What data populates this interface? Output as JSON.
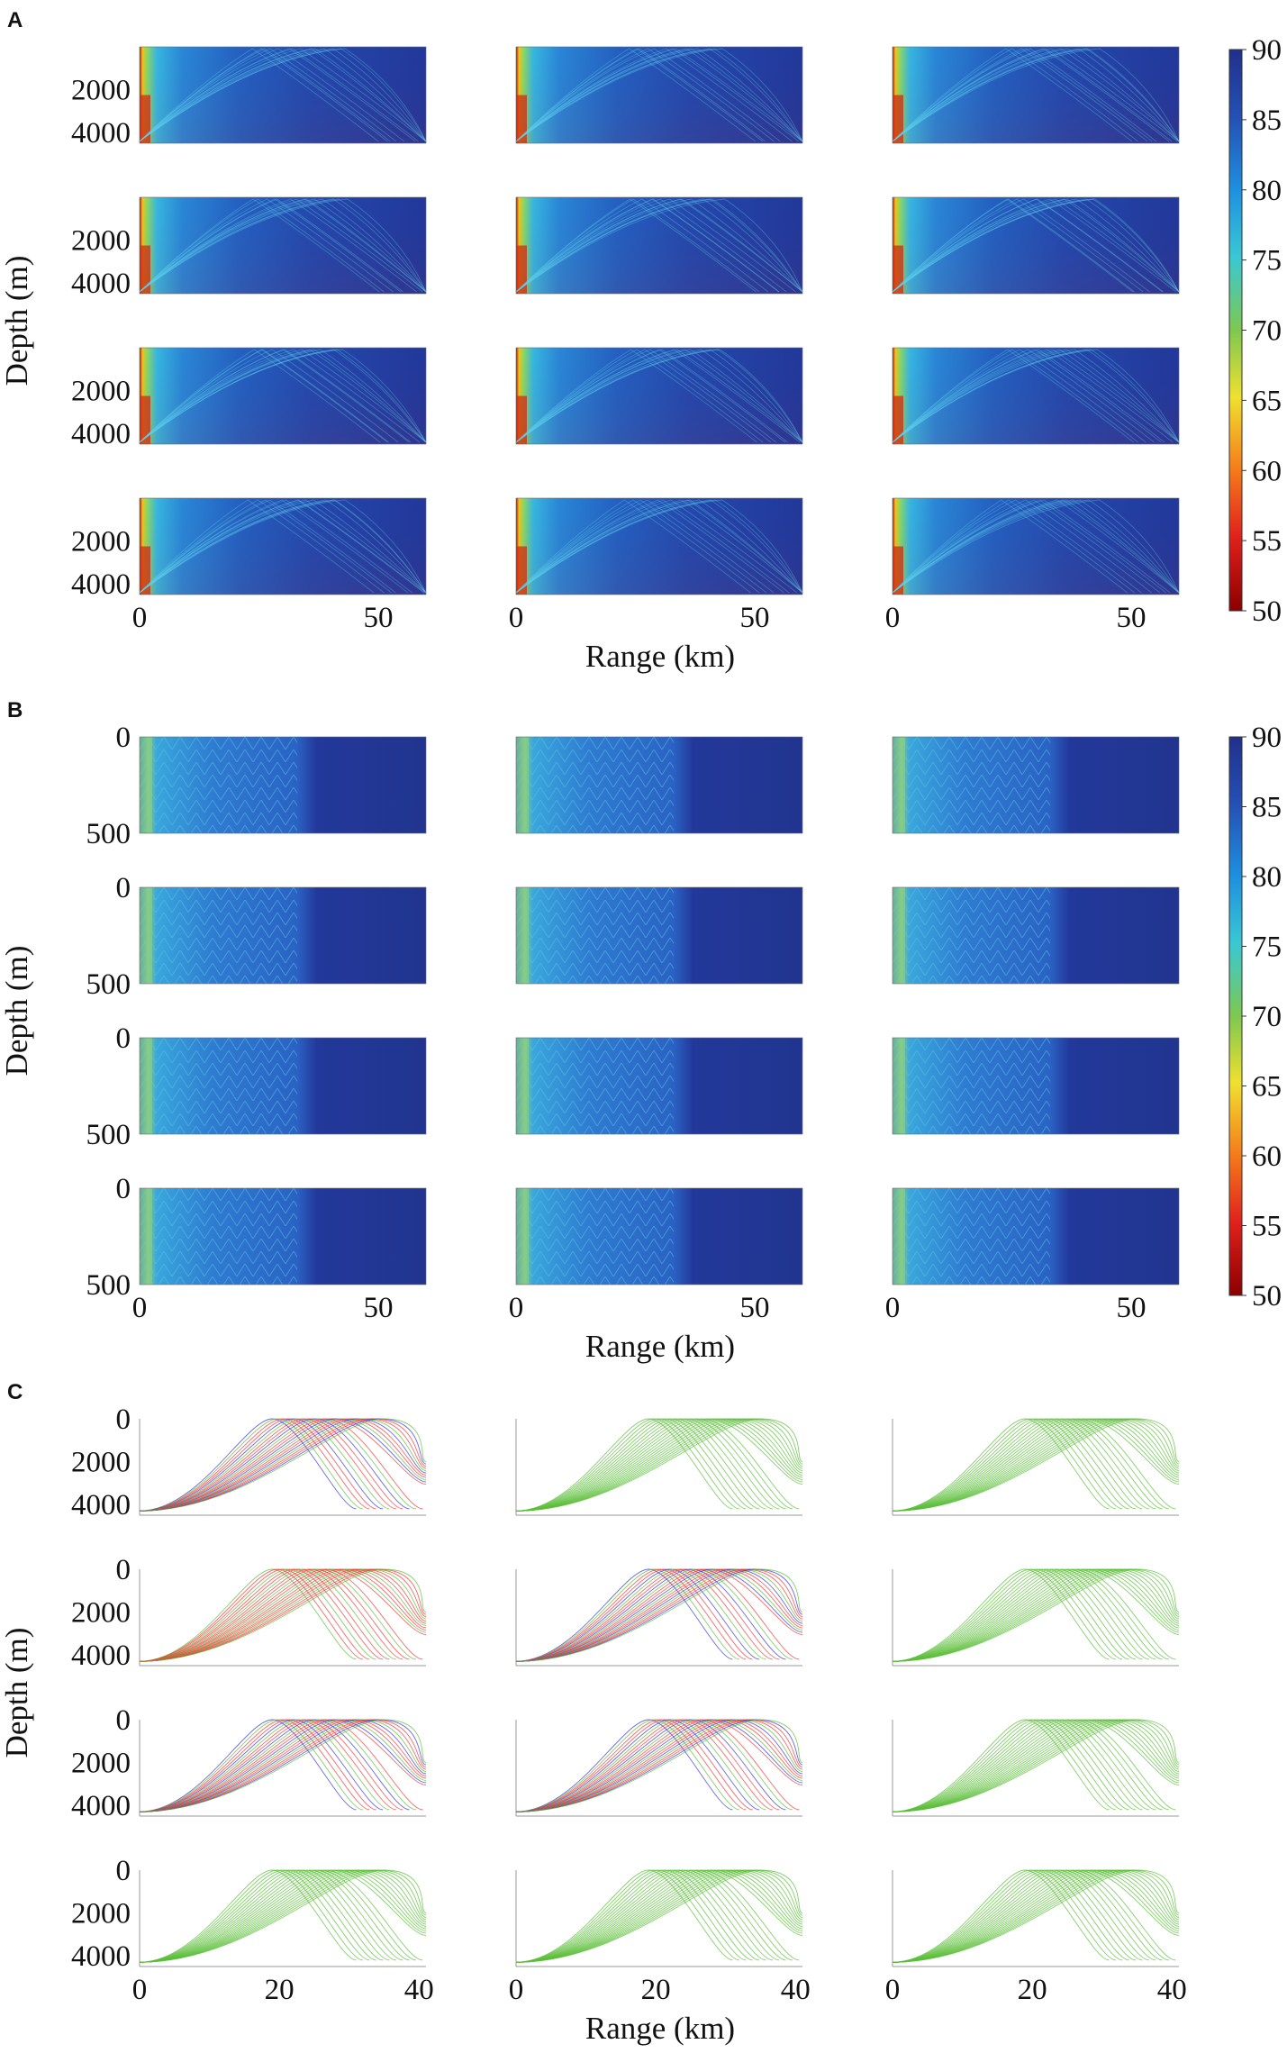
{
  "chart_data": [
    {
      "type": "heatmap",
      "panel_label": "A",
      "grid": {
        "rows": 4,
        "cols": 3
      },
      "ylabel": "Depth (m)",
      "xlabel": "Range (km)",
      "x_tick_labels": [
        "0",
        "50"
      ],
      "y_tick_labels": [
        "2000",
        "4000"
      ],
      "xlim": [
        0,
        60
      ],
      "ylim": [
        0,
        4500
      ],
      "colorbar": {
        "min": 50,
        "max": 90,
        "tick_labels": [
          "90",
          "85",
          "80",
          "75",
          "70",
          "65",
          "60",
          "55",
          "50"
        ]
      },
      "colors": {
        "low": "#8b0000",
        "mid": "#39c8d4",
        "high": "#21308c"
      }
    },
    {
      "type": "heatmap",
      "panel_label": "B",
      "grid": {
        "rows": 4,
        "cols": 3
      },
      "ylabel": "Depth (m)",
      "xlabel": "Range (km)",
      "x_tick_labels": [
        "0",
        "50"
      ],
      "y_tick_labels": [
        "0",
        "500"
      ],
      "xlim": [
        0,
        60
      ],
      "ylim": [
        0,
        500
      ],
      "colorbar": {
        "min": 50,
        "max": 90,
        "tick_labels": [
          "90",
          "85",
          "80",
          "75",
          "70",
          "65",
          "60",
          "55",
          "50"
        ]
      },
      "colors": {
        "low": "#8b0000",
        "mid": "#39c8d4",
        "high": "#21308c"
      }
    },
    {
      "type": "line",
      "subtype": "ray-trace",
      "panel_label": "C",
      "grid": {
        "rows": 4,
        "cols": 3
      },
      "ylabel": "Depth (m)",
      "xlabel": "Range (km)",
      "x_tick_labels": [
        "0",
        "20",
        "40"
      ],
      "y_tick_labels": [
        "0",
        "2000",
        "4000"
      ],
      "xlim": [
        0,
        41
      ],
      "ylim": [
        0,
        4500
      ],
      "ray_colors": {
        "green": "#5cbf3a",
        "red": "#f03a3a",
        "blue": "#3a3ad8"
      },
      "highlighted_subplots": [
        {
          "row": 0,
          "col": 0,
          "mix": "red-blue"
        },
        {
          "row": 1,
          "col": 0,
          "mix": "red"
        },
        {
          "row": 1,
          "col": 1,
          "mix": "red-blue"
        },
        {
          "row": 2,
          "col": 0,
          "mix": "red-blue"
        },
        {
          "row": 2,
          "col": 1,
          "mix": "red-blue"
        }
      ]
    }
  ]
}
